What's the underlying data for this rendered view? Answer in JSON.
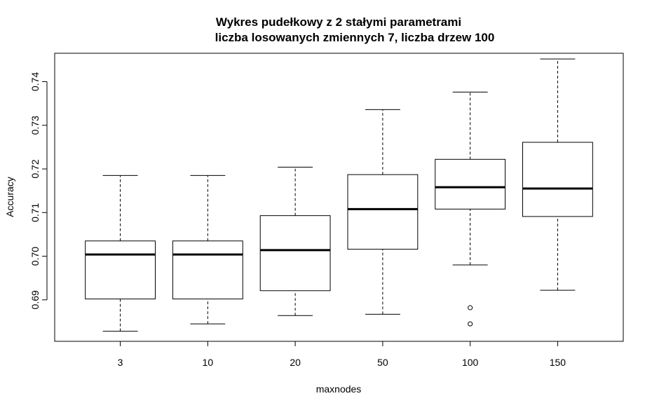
{
  "chart_data": {
    "type": "box",
    "title": "Wykres pudełkowy z 2 stałymi parametrami",
    "subtitle": "liczba losowanych zmiennych 7, liczba drzew 100",
    "xlabel": "maxnodes",
    "ylabel": "Accuracy",
    "ylim": [
      0.6805,
      0.7465
    ],
    "yticks": [
      "0.69",
      "0.70",
      "0.71",
      "0.72",
      "0.73",
      "0.74"
    ],
    "categories": [
      "3",
      "10",
      "20",
      "50",
      "100",
      "150"
    ],
    "boxes": [
      {
        "min": 0.6828,
        "q1": 0.6902,
        "median": 0.7004,
        "q3": 0.7035,
        "max": 0.7185,
        "outliers": []
      },
      {
        "min": 0.6845,
        "q1": 0.6902,
        "median": 0.7004,
        "q3": 0.7035,
        "max": 0.7185,
        "outliers": []
      },
      {
        "min": 0.6864,
        "q1": 0.6921,
        "median": 0.7014,
        "q3": 0.7093,
        "max": 0.7204,
        "outliers": []
      },
      {
        "min": 0.6867,
        "q1": 0.7016,
        "median": 0.7108,
        "q3": 0.7187,
        "max": 0.7336,
        "outliers": []
      },
      {
        "min": 0.698,
        "q1": 0.7108,
        "median": 0.7158,
        "q3": 0.7222,
        "max": 0.7376,
        "outliers": [
          0.6882,
          0.6845
        ]
      },
      {
        "min": 0.6922,
        "q1": 0.7091,
        "median": 0.7155,
        "q3": 0.7261,
        "max": 0.7452,
        "outliers": []
      }
    ],
    "grid": false,
    "legend": "none"
  }
}
